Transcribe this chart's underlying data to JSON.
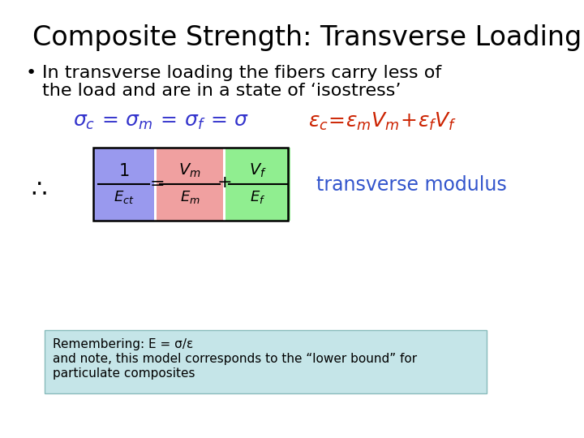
{
  "title": "Composite Strength: Transverse Loading",
  "bullet_text_line1": "In transverse loading the fibers carry less of",
  "bullet_text_line2": "the load and are in a state of ‘isostress’",
  "therefore_label": "∴",
  "transverse_label": "transverse modulus",
  "note_line1": "Remembering: E = σ/ε",
  "note_line2": "and note, this model corresponds to the “lower bound” for",
  "note_line3": "particulate composites",
  "bg_color": "#ffffff",
  "title_color": "#000000",
  "bullet_color": "#000000",
  "sigma_color": "#3333cc",
  "epsilon_color": "#cc2200",
  "transverse_color": "#3355cc",
  "note_bg_color": "#c5e5e8",
  "box_edge_color": "#000000",
  "pink_color": "#f0a0a0",
  "green_color": "#90ee90",
  "blue_color": "#9999ee"
}
